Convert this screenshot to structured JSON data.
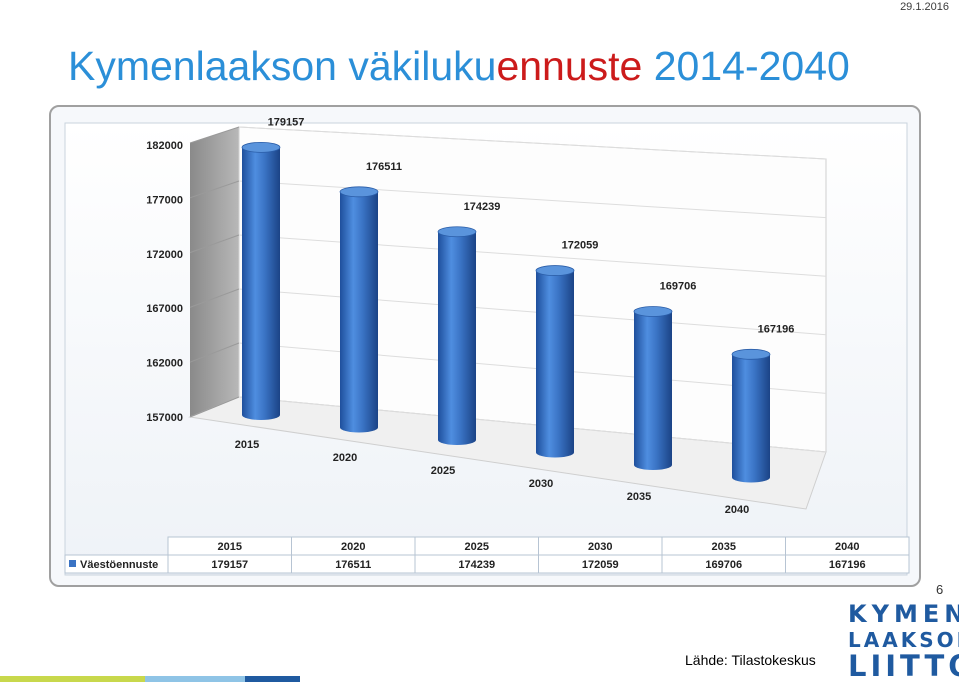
{
  "header": {
    "date": "29.1.2016",
    "title_part1": "Kymenlaakson väkiluku",
    "title_part2": "ennuste",
    "title_part3": " 2014-2040"
  },
  "footer": {
    "page_number": "6",
    "source": "Lähde: Tilastokeskus",
    "logo_lines": [
      "KYMEN",
      "LAAKSON",
      "LIITTO"
    ]
  },
  "colors": {
    "title_blue": "#2b8fd8",
    "title_red": "#cc1b1b",
    "bar": "#3a73c4",
    "logo": "#1f5aa0"
  },
  "chart_data": {
    "type": "bar",
    "categories": [
      "2015",
      "2020",
      "2025",
      "2030",
      "2035",
      "2040"
    ],
    "series": [
      {
        "name": "Väestöennuste",
        "values": [
          179157,
          176511,
          174239,
          172059,
          169706,
          167196
        ]
      }
    ],
    "ylim": [
      157000,
      182000
    ],
    "yticks": [
      "182000",
      "177000",
      "172000",
      "167000",
      "162000",
      "157000"
    ],
    "data_labels": [
      "179157",
      "176511",
      "174239",
      "172059",
      "169706",
      "167196"
    ],
    "grid": true,
    "legend": "bottom-left",
    "data_table": true
  }
}
